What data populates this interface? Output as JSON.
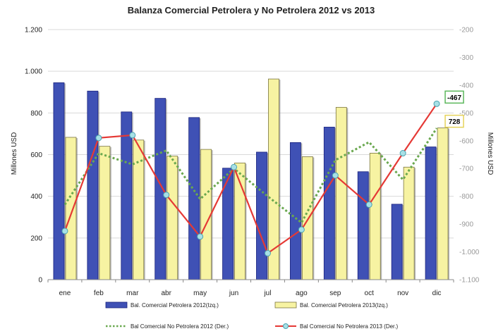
{
  "chart_data": {
    "type": "bar",
    "title": "Balanza Comercial Petrolera y No Petrolera 2012 vs 2013",
    "categories": [
      "ene",
      "feb",
      "mar",
      "abr",
      "may",
      "jun",
      "jul",
      "ago",
      "sep",
      "oct",
      "nov",
      "dic"
    ],
    "ylabel_left": "Millones USD",
    "ylabel_right": "Millones USD",
    "ylim_left": [
      0,
      1200
    ],
    "ylim_right": [
      -1100,
      -200
    ],
    "yticks_left": [
      0,
      200,
      400,
      600,
      800,
      1000,
      1200
    ],
    "yticks_left_labels": [
      "0",
      "200",
      "400",
      "600",
      "800",
      "1.000",
      "1.200"
    ],
    "yticks_right": [
      -200,
      -300,
      -400,
      -500,
      -600,
      -700,
      -800,
      -900,
      -1000,
      -1100
    ],
    "yticks_right_labels": [
      "-200",
      "-300",
      "-400",
      "-500",
      "-600",
      "-700",
      "-800",
      "-900",
      "-1.000",
      "-1.100"
    ],
    "series": [
      {
        "name": "Bal. Comercial Petrolera 2012(Izq.)",
        "kind": "bar",
        "axis": "left",
        "color": "#3F51B5",
        "values": [
          945,
          905,
          805,
          870,
          778,
          535,
          612,
          658,
          732,
          518,
          362,
          637
        ]
      },
      {
        "name": "Bal. Comercial Petrolera 2013(Izq.)",
        "kind": "bar",
        "axis": "left",
        "color": "#F7F3A2",
        "values": [
          683,
          640,
          670,
          593,
          625,
          560,
          963,
          590,
          827,
          607,
          540,
          728
        ]
      },
      {
        "name": "Bal Comercial No Petrolera 2012 (Der.)",
        "kind": "line",
        "style": "dotted",
        "axis": "right",
        "color": "#6AA84F",
        "values": [
          -830,
          -645,
          -685,
          -635,
          -810,
          -700,
          -800,
          -895,
          -670,
          -605,
          -740,
          -555
        ]
      },
      {
        "name": "Bal Comercial No Petrolera 2013 (Der.)",
        "kind": "line",
        "style": "solid-markers",
        "axis": "right",
        "color": "#E53935",
        "values": [
          -925,
          -590,
          -580,
          -795,
          -945,
          -695,
          -1005,
          -920,
          -725,
          -830,
          -645,
          -467
        ]
      }
    ],
    "annotations": [
      {
        "text": "-467",
        "series": 3,
        "index": 11,
        "border": "#5CB85C"
      },
      {
        "text": "728",
        "series": 1,
        "index": 11,
        "border": "#E6D35A"
      }
    ],
    "grid": true,
    "legend_position": "bottom"
  }
}
